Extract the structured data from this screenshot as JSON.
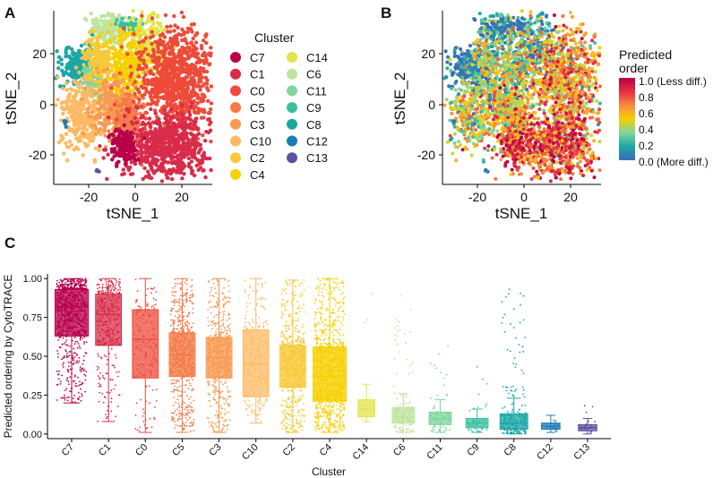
{
  "panels": {
    "a": "A",
    "b": "B",
    "c": "C"
  },
  "colors": {
    "C7": "#B8004A",
    "C1": "#D82C4A",
    "C0": "#EE4A3A",
    "C5": "#F57A48",
    "C3": "#F89A52",
    "C10": "#FDBA63",
    "C2": "#F8C93A",
    "C4": "#F6D000",
    "C14": "#E2E34A",
    "C6": "#BFE49E",
    "C11": "#7FD69C",
    "C9": "#3CBFA0",
    "C8": "#1BA7A6",
    "C12": "#1B7CB6",
    "C13": "#5A52A2"
  },
  "chart_data": [
    {
      "type": "scatter",
      "panel": "A",
      "xlabel": "tSNE_1",
      "ylabel": "tSNE_2",
      "xticks": [
        "-20",
        "0",
        "20"
      ],
      "yticks": [
        "20",
        "0",
        "-20"
      ],
      "xlim": [
        -35,
        32
      ],
      "ylim": [
        -32,
        33
      ],
      "legend": {
        "title": "Cluster",
        "items": [
          "C7",
          "C1",
          "C0",
          "C5",
          "C3",
          "C10",
          "C2",
          "C4",
          "C14",
          "C6",
          "C11",
          "C9",
          "C8",
          "C12",
          "C13"
        ]
      },
      "clusters": [
        {
          "name": "C6",
          "x": -12,
          "y": 26,
          "sx": 4,
          "sy": 3.5,
          "n": 170
        },
        {
          "name": "C9",
          "x": -3,
          "y": 28,
          "sx": 2.5,
          "sy": 1.5,
          "n": 50
        },
        {
          "name": "C14",
          "x": 4,
          "y": 20,
          "sx": 4,
          "sy": 6,
          "n": 200
        },
        {
          "name": "C8",
          "x": -26,
          "y": 12,
          "sx": 4,
          "sy": 3.5,
          "n": 200
        },
        {
          "name": "C11",
          "x": -19,
          "y": 8,
          "sx": 2.5,
          "sy": 4,
          "n": 100
        },
        {
          "name": "C4",
          "x": -6,
          "y": 12,
          "sx": 5,
          "sy": 7,
          "n": 320
        },
        {
          "name": "C2",
          "x": -17,
          "y": 15,
          "sx": 3,
          "sy": 4,
          "n": 140
        },
        {
          "name": "C10",
          "x": -24,
          "y": -5,
          "sx": 5,
          "sy": 7,
          "n": 300
        },
        {
          "name": "C3",
          "x": -11,
          "y": -3,
          "sx": 4,
          "sy": 6,
          "n": 260
        },
        {
          "name": "C5",
          "x": -3,
          "y": -8,
          "sx": 3,
          "sy": 5,
          "n": 200
        },
        {
          "name": "C0",
          "x": 17,
          "y": 7,
          "sx": 8,
          "sy": 10,
          "n": 900
        },
        {
          "name": "C1",
          "x": 12,
          "y": -18,
          "sx": 9,
          "sy": 6,
          "n": 700
        },
        {
          "name": "C7",
          "x": -6,
          "y": -18,
          "sx": 3,
          "sy": 3,
          "n": 150
        },
        {
          "name": "C12",
          "x": -31,
          "y": -9,
          "sx": 0.5,
          "sy": 0.5,
          "n": 5
        },
        {
          "name": "C13",
          "x": -17,
          "y": -27,
          "sx": 0.4,
          "sy": 0.4,
          "n": 3
        }
      ]
    },
    {
      "type": "scatter",
      "panel": "B",
      "xlabel": "tSNE_1",
      "ylabel": "tSNE_2",
      "xticks": [
        "-20",
        "0",
        "20"
      ],
      "yticks": [
        "20",
        "0",
        "-20"
      ],
      "xlim": [
        -35,
        32
      ],
      "ylim": [
        -32,
        33
      ],
      "colorbar": {
        "title_lines": [
          "Predicted",
          "order"
        ],
        "labels": [
          "1.0 (Less diff.)",
          "0.8",
          "0.6",
          "0.4",
          "0.2",
          "0.0 (More diff.)"
        ],
        "stops": [
          "#B8004A",
          "#E8303C",
          "#F88A44",
          "#F6D000",
          "#7FD69C",
          "#1BA7A6",
          "#3B6BB8"
        ]
      }
    },
    {
      "type": "box",
      "panel": "C",
      "title": "",
      "xlabel": "Cluster",
      "ylabel": "Predicted ordering by CytoTRACE",
      "ylim": [
        -0.03,
        1.03
      ],
      "yticks": [
        "1.00",
        "0.75",
        "0.50",
        "0.25",
        "0.00"
      ],
      "categories": [
        "C7",
        "C1",
        "C0",
        "C5",
        "C3",
        "C10",
        "C2",
        "C4",
        "C14",
        "C6",
        "C11",
        "C9",
        "C8",
        "C12",
        "C13"
      ],
      "boxes": [
        {
          "q1": 0.63,
          "median": 0.82,
          "q3": 0.93,
          "lo": 0.2,
          "hi": 1.0,
          "width": 0.9
        },
        {
          "q1": 0.57,
          "median": 0.77,
          "q3": 0.9,
          "lo": 0.08,
          "hi": 1.0,
          "width": 0.7
        },
        {
          "q1": 0.36,
          "median": 0.61,
          "q3": 0.8,
          "lo": 0.01,
          "hi": 1.0,
          "width": 0.7
        },
        {
          "q1": 0.37,
          "median": 0.51,
          "q3": 0.65,
          "lo": 0.01,
          "hi": 1.0,
          "width": 0.7
        },
        {
          "q1": 0.36,
          "median": 0.49,
          "q3": 0.62,
          "lo": 0.01,
          "hi": 1.0,
          "width": 0.7
        },
        {
          "q1": 0.24,
          "median": 0.45,
          "q3": 0.67,
          "lo": 0.07,
          "hi": 1.0,
          "width": 0.7
        },
        {
          "q1": 0.3,
          "median": 0.42,
          "q3": 0.57,
          "lo": 0.01,
          "hi": 0.99,
          "width": 0.7
        },
        {
          "q1": 0.21,
          "median": 0.37,
          "q3": 0.56,
          "lo": 0.01,
          "hi": 1.0,
          "width": 0.9
        },
        {
          "q1": 0.11,
          "median": 0.16,
          "q3": 0.22,
          "lo": 0.08,
          "hi": 0.32,
          "width": 0.45
        },
        {
          "q1": 0.07,
          "median": 0.11,
          "q3": 0.17,
          "lo": 0.01,
          "hi": 0.26,
          "width": 0.6
        },
        {
          "q1": 0.06,
          "median": 0.1,
          "q3": 0.14,
          "lo": 0.01,
          "hi": 0.22,
          "width": 0.6
        },
        {
          "q1": 0.04,
          "median": 0.07,
          "q3": 0.1,
          "lo": 0.01,
          "hi": 0.16,
          "width": 0.6
        },
        {
          "q1": 0.03,
          "median": 0.07,
          "q3": 0.13,
          "lo": 0.0,
          "hi": 0.23,
          "width": 0.75
        },
        {
          "q1": 0.03,
          "median": 0.05,
          "q3": 0.07,
          "lo": 0.01,
          "hi": 0.12,
          "width": 0.5
        },
        {
          "q1": 0.02,
          "median": 0.04,
          "q3": 0.06,
          "lo": 0.0,
          "hi": 0.1,
          "width": 0.5
        }
      ],
      "outlier_counts": [
        900,
        420,
        160,
        800,
        700,
        240,
        750,
        1100,
        12,
        180,
        90,
        60,
        260,
        18,
        22
      ],
      "outlier_max": [
        1.0,
        1.0,
        1.0,
        1.0,
        1.0,
        0.99,
        0.99,
        1.0,
        0.96,
        0.97,
        0.6,
        0.45,
        0.95,
        0.13,
        0.23
      ]
    }
  ]
}
